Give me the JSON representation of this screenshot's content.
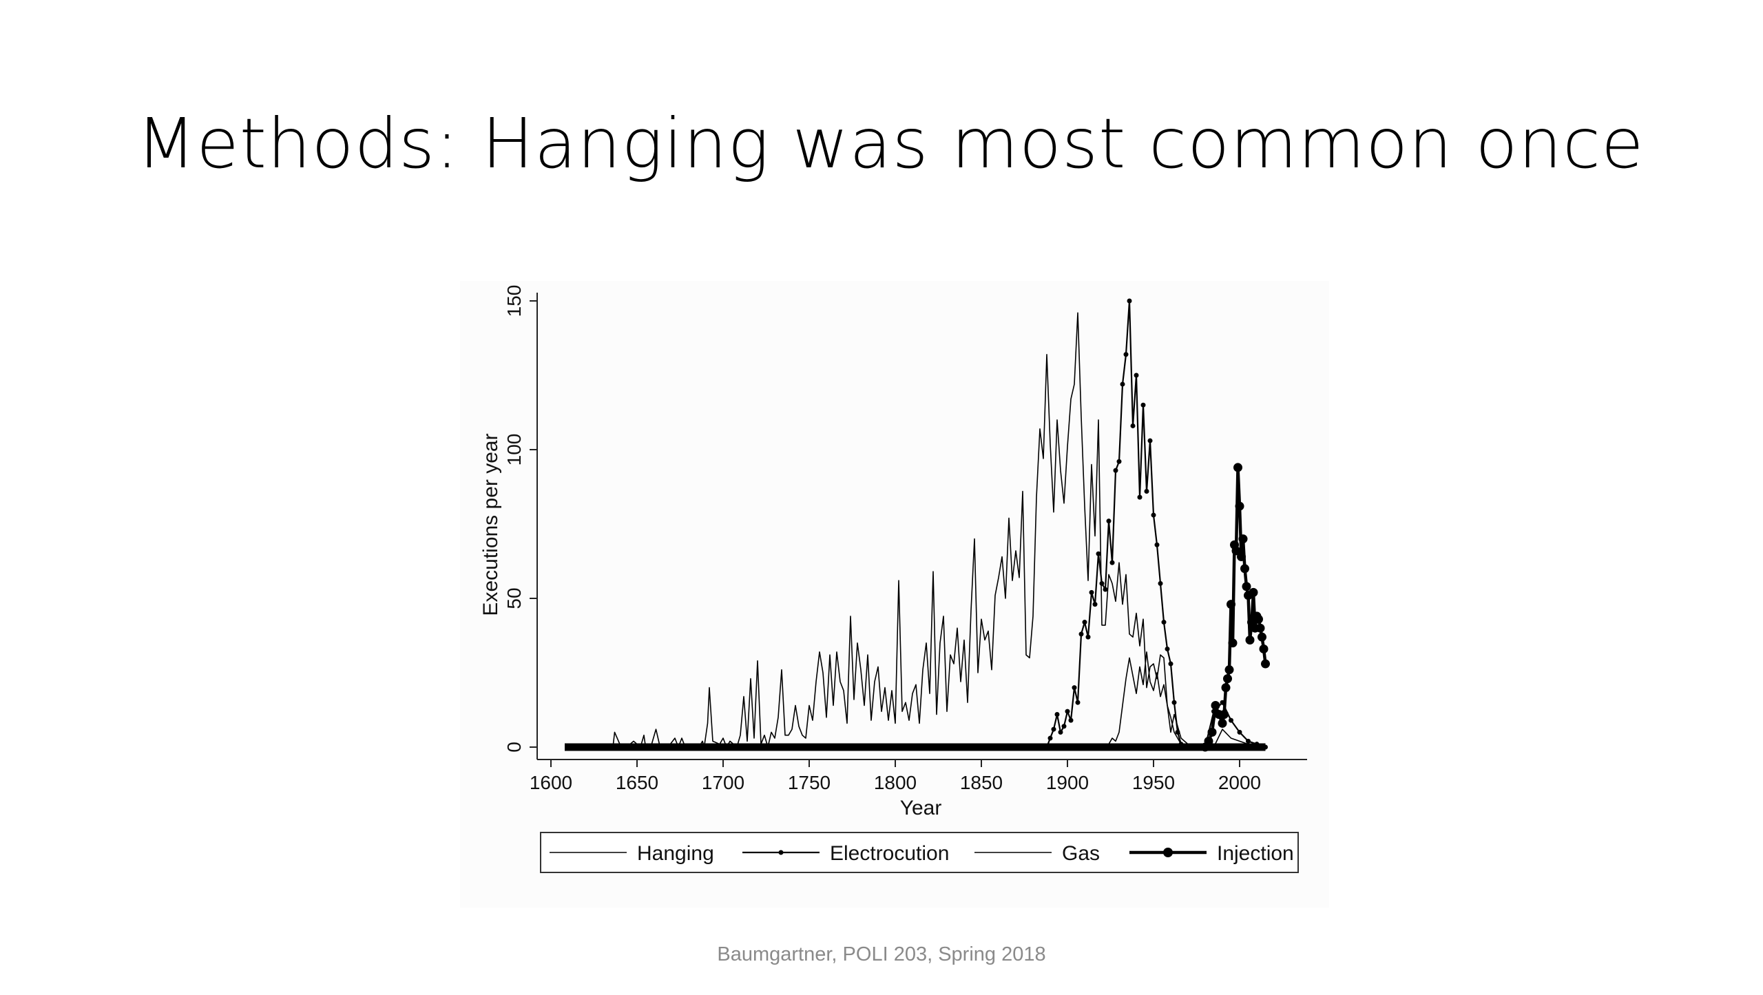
{
  "slide": {
    "title": "Methods: Hanging was most common once",
    "footer": "Baumgartner, POLI 203, Spring 2018"
  },
  "chart_data": {
    "type": "line",
    "title": "",
    "xlabel": "Year",
    "ylabel": "Executions per year",
    "xlim": [
      1608,
      2015
    ],
    "ylim": [
      0,
      150
    ],
    "xticks": [
      1600,
      1650,
      1700,
      1750,
      1800,
      1850,
      1900,
      1950,
      2000
    ],
    "yticks": [
      0,
      50,
      100,
      150
    ],
    "grid": false,
    "legend": "bottom",
    "series": [
      {
        "name": "Hanging",
        "marker": "none",
        "line": "thin",
        "x": [
          1608,
          1622,
          1632,
          1636,
          1637,
          1640,
          1644,
          1648,
          1652,
          1654,
          1655,
          1658,
          1661,
          1663,
          1664,
          1668,
          1672,
          1674,
          1676,
          1678,
          1682,
          1686,
          1688,
          1689,
          1691,
          1692,
          1694,
          1698,
          1700,
          1702,
          1704,
          1706,
          1708,
          1710,
          1712,
          1714,
          1716,
          1718,
          1720,
          1722,
          1724,
          1726,
          1728,
          1730,
          1732,
          1734,
          1736,
          1738,
          1740,
          1742,
          1744,
          1746,
          1748,
          1750,
          1752,
          1754,
          1756,
          1758,
          1760,
          1762,
          1764,
          1766,
          1768,
          1770,
          1772,
          1774,
          1776,
          1778,
          1780,
          1782,
          1784,
          1786,
          1788,
          1790,
          1792,
          1794,
          1796,
          1798,
          1800,
          1802,
          1804,
          1806,
          1808,
          1810,
          1812,
          1814,
          1816,
          1818,
          1820,
          1822,
          1824,
          1826,
          1828,
          1830,
          1832,
          1834,
          1836,
          1838,
          1840,
          1842,
          1844,
          1846,
          1848,
          1850,
          1852,
          1854,
          1856,
          1858,
          1860,
          1862,
          1864,
          1866,
          1868,
          1870,
          1872,
          1874,
          1876,
          1878,
          1880,
          1882,
          1884,
          1886,
          1888,
          1890,
          1892,
          1894,
          1896,
          1898,
          1900,
          1902,
          1904,
          1906,
          1908,
          1910,
          1912,
          1914,
          1916,
          1918,
          1920,
          1922,
          1924,
          1926,
          1928,
          1930,
          1932,
          1934,
          1936,
          1938,
          1940,
          1942,
          1944,
          1946,
          1948,
          1950,
          1952,
          1954,
          1956,
          1958,
          1960,
          1962,
          1964,
          1966,
          1968,
          1970,
          1975,
          1980,
          1985,
          1990,
          1995,
          2000,
          2005,
          2010,
          2015
        ],
        "y": [
          0,
          0,
          0,
          0,
          5,
          1,
          0,
          2,
          0,
          4,
          0,
          0,
          6,
          1,
          0,
          0,
          3,
          0,
          3,
          0,
          0,
          0,
          2,
          0,
          8,
          20,
          2,
          1,
          3,
          0,
          2,
          1,
          0,
          4,
          17,
          2,
          23,
          3,
          29,
          1,
          4,
          0,
          5,
          3,
          10,
          26,
          4,
          4,
          6,
          14,
          7,
          4,
          3,
          14,
          9,
          22,
          32,
          25,
          10,
          31,
          14,
          32,
          22,
          19,
          8,
          44,
          16,
          35,
          26,
          14,
          31,
          9,
          22,
          27,
          12,
          20,
          9,
          19,
          8,
          56,
          12,
          15,
          9,
          18,
          21,
          8,
          26,
          35,
          18,
          59,
          11,
          35,
          44,
          12,
          31,
          28,
          40,
          22,
          36,
          15,
          46,
          70,
          25,
          43,
          36,
          39,
          26,
          51,
          57,
          64,
          50,
          77,
          56,
          66,
          57,
          86,
          31,
          30,
          44,
          84,
          107,
          97,
          132,
          102,
          79,
          110,
          93,
          82,
          101,
          117,
          122,
          146,
          111,
          81,
          56,
          95,
          71,
          110,
          41,
          41,
          58,
          55,
          49,
          62,
          48,
          58,
          38,
          37,
          45,
          34,
          43,
          20,
          27,
          28,
          23,
          31,
          30,
          14,
          5,
          11,
          7,
          3,
          2,
          1,
          0,
          0,
          0,
          0,
          0,
          0,
          0,
          0,
          0
        ]
      },
      {
        "name": "Electrocution",
        "marker": "small-dot",
        "line": "thin",
        "x": [
          1888,
          1890,
          1892,
          1894,
          1896,
          1898,
          1900,
          1902,
          1904,
          1906,
          1908,
          1910,
          1912,
          1914,
          1916,
          1918,
          1920,
          1922,
          1924,
          1926,
          1928,
          1930,
          1932,
          1934,
          1936,
          1938,
          1940,
          1942,
          1944,
          1946,
          1948,
          1950,
          1952,
          1954,
          1956,
          1958,
          1960,
          1962,
          1964,
          1966,
          1968,
          1970,
          1975,
          1980,
          1985,
          1990,
          1995,
          2000,
          2005,
          2010,
          2015
        ],
        "y": [
          0,
          3,
          6,
          11,
          5,
          7,
          12,
          9,
          20,
          15,
          38,
          42,
          37,
          52,
          48,
          65,
          55,
          53,
          76,
          62,
          93,
          96,
          122,
          132,
          150,
          108,
          125,
          84,
          115,
          86,
          103,
          78,
          68,
          55,
          42,
          33,
          28,
          15,
          5,
          1,
          0,
          0,
          0,
          0,
          12,
          15,
          9,
          5,
          2,
          1,
          0
        ]
      },
      {
        "name": "Gas",
        "marker": "none",
        "line": "thin",
        "x": [
          1920,
          1922,
          1924,
          1926,
          1928,
          1930,
          1932,
          1934,
          1936,
          1938,
          1940,
          1942,
          1944,
          1946,
          1948,
          1950,
          1952,
          1954,
          1956,
          1958,
          1960,
          1962,
          1964,
          1966,
          1968,
          1975,
          1980,
          1985,
          1990,
          1995,
          2000,
          2005,
          2010,
          2015
        ],
        "y": [
          0,
          0,
          1,
          3,
          2,
          5,
          14,
          23,
          30,
          24,
          18,
          27,
          21,
          32,
          22,
          19,
          25,
          17,
          21,
          14,
          10,
          5,
          3,
          1,
          0,
          0,
          0,
          0,
          6,
          3,
          2,
          1,
          0,
          0
        ]
      },
      {
        "name": "Injection",
        "marker": "large-dot",
        "line": "thick",
        "x": [
          1980,
          1982,
          1984,
          1986,
          1988,
          1990,
          1991,
          1992,
          1993,
          1994,
          1995,
          1996,
          1997,
          1998,
          1999,
          2000,
          2001,
          2002,
          2003,
          2004,
          2005,
          2006,
          2007,
          2008,
          2009,
          2010,
          2011,
          2012,
          2013,
          2014,
          2015
        ],
        "y": [
          0,
          2,
          5,
          14,
          11,
          8,
          11,
          20,
          23,
          26,
          48,
          35,
          68,
          66,
          94,
          81,
          64,
          70,
          60,
          54,
          51,
          36,
          42,
          52,
          40,
          44,
          43,
          40,
          37,
          33,
          28
        ]
      }
    ]
  }
}
